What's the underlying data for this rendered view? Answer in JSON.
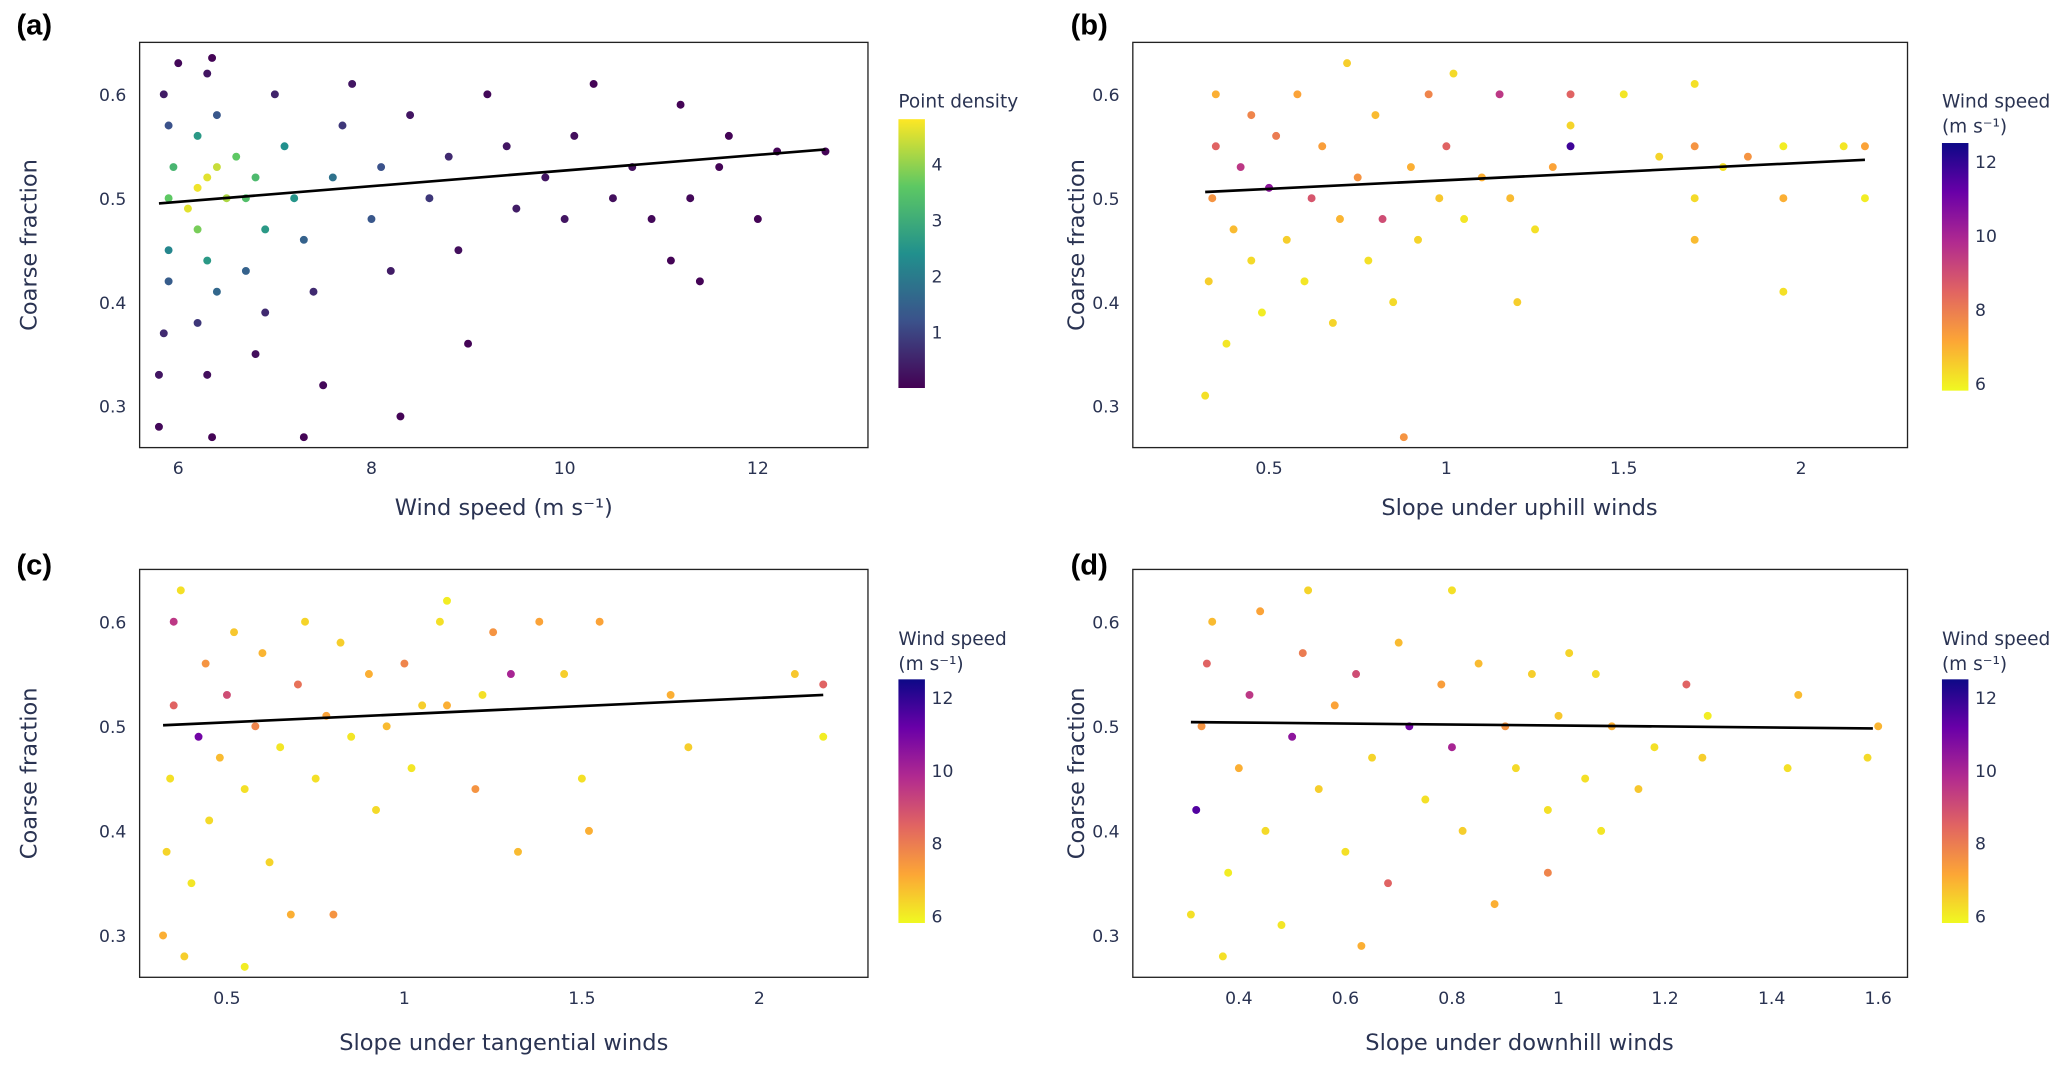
{
  "chart_data": [
    {
      "panel_label": "(a)",
      "type": "scatter",
      "xlabel": "Wind speed (m s⁻¹)",
      "ylabel": "Coarse fraction",
      "xlim": [
        5.6,
        13.14
      ],
      "ylim": [
        0.26,
        0.65
      ],
      "xticks": [
        6,
        8,
        10,
        12
      ],
      "yticks": [
        0.3,
        0.4,
        0.5,
        0.6
      ],
      "grid": false,
      "colorbar": {
        "title": "Point density",
        "title2": "",
        "range": [
          0,
          4.8
        ],
        "ticks": [
          1,
          2,
          3,
          4
        ],
        "colormap": "viridis",
        "stops": [
          "#440154",
          "#3b528b",
          "#21908d",
          "#5dc863",
          "#fde725"
        ]
      },
      "fit_line": {
        "x": [
          5.8,
          12.7
        ],
        "y": [
          0.495,
          0.547
        ],
        "color": "#000000"
      },
      "points": [
        [
          5.8,
          0.28,
          0.1
        ],
        [
          5.8,
          0.33,
          0.3
        ],
        [
          5.85,
          0.37,
          0.6
        ],
        [
          5.9,
          0.42,
          1.4
        ],
        [
          5.9,
          0.45,
          2.2
        ],
        [
          5.9,
          0.5,
          3.6
        ],
        [
          5.95,
          0.53,
          3.2
        ],
        [
          5.9,
          0.57,
          1.2
        ],
        [
          5.85,
          0.6,
          0.4
        ],
        [
          6.0,
          0.63,
          0.1
        ],
        [
          6.1,
          0.49,
          4.6
        ],
        [
          6.2,
          0.51,
          4.7
        ],
        [
          6.3,
          0.52,
          4.6
        ],
        [
          6.4,
          0.53,
          4.4
        ],
        [
          6.5,
          0.5,
          4.2
        ],
        [
          6.2,
          0.47,
          3.8
        ],
        [
          6.3,
          0.44,
          2.6
        ],
        [
          6.4,
          0.41,
          1.6
        ],
        [
          6.2,
          0.38,
          0.8
        ],
        [
          6.3,
          0.33,
          0.2
        ],
        [
          6.35,
          0.27,
          0.05
        ],
        [
          6.2,
          0.56,
          2.6
        ],
        [
          6.4,
          0.58,
          1.3
        ],
        [
          6.3,
          0.62,
          0.3
        ],
        [
          6.35,
          0.635,
          0.05
        ],
        [
          6.6,
          0.54,
          3.6
        ],
        [
          6.7,
          0.5,
          3.4
        ],
        [
          6.8,
          0.52,
          3.3
        ],
        [
          6.9,
          0.47,
          2.6
        ],
        [
          6.7,
          0.43,
          1.5
        ],
        [
          6.9,
          0.39,
          0.6
        ],
        [
          6.8,
          0.35,
          0.2
        ],
        [
          7.0,
          0.6,
          0.5
        ],
        [
          7.1,
          0.55,
          2.4
        ],
        [
          7.2,
          0.5,
          2.5
        ],
        [
          7.3,
          0.46,
          1.5
        ],
        [
          7.3,
          0.27,
          0.05
        ],
        [
          7.5,
          0.32,
          0.1
        ],
        [
          7.4,
          0.41,
          0.6
        ],
        [
          7.6,
          0.52,
          1.8
        ],
        [
          7.7,
          0.57,
          0.8
        ],
        [
          7.8,
          0.61,
          0.3
        ],
        [
          8.0,
          0.48,
          1.3
        ],
        [
          8.1,
          0.53,
          1.2
        ],
        [
          8.2,
          0.43,
          0.4
        ],
        [
          8.3,
          0.29,
          0.05
        ],
        [
          8.4,
          0.58,
          0.3
        ],
        [
          8.6,
          0.5,
          0.8
        ],
        [
          8.8,
          0.54,
          0.6
        ],
        [
          8.9,
          0.45,
          0.2
        ],
        [
          9.0,
          0.36,
          0.05
        ],
        [
          9.2,
          0.6,
          0.1
        ],
        [
          9.4,
          0.55,
          0.3
        ],
        [
          9.5,
          0.49,
          0.4
        ],
        [
          9.8,
          0.52,
          0.3
        ],
        [
          10.0,
          0.48,
          0.3
        ],
        [
          10.1,
          0.56,
          0.2
        ],
        [
          10.3,
          0.61,
          0.05
        ],
        [
          10.5,
          0.5,
          0.2
        ],
        [
          10.7,
          0.53,
          0.2
        ],
        [
          10.9,
          0.48,
          0.1
        ],
        [
          11.1,
          0.44,
          0.05
        ],
        [
          11.2,
          0.59,
          0.05
        ],
        [
          11.3,
          0.5,
          0.1
        ],
        [
          11.4,
          0.42,
          0.05
        ],
        [
          11.6,
          0.53,
          0.05
        ],
        [
          11.7,
          0.56,
          0.05
        ],
        [
          12.0,
          0.48,
          0.05
        ],
        [
          12.2,
          0.545,
          0.05
        ],
        [
          12.7,
          0.545,
          0.05
        ]
      ]
    },
    {
      "panel_label": "(b)",
      "type": "scatter",
      "xlabel": "Slope under uphill winds",
      "ylabel": "Coarse fraction",
      "xlim": [
        0.116,
        2.3
      ],
      "ylim": [
        0.26,
        0.65
      ],
      "xticks": [
        0.5,
        1,
        1.5,
        2
      ],
      "yticks": [
        0.3,
        0.4,
        0.5,
        0.6
      ],
      "grid": false,
      "colorbar": {
        "title": "Wind speed",
        "title2": "(m s⁻¹)",
        "range": [
          5.8,
          12.5
        ],
        "ticks": [
          6,
          8,
          10,
          12
        ],
        "colormap": "plasma-reversed",
        "stops": [
          "#f0f921",
          "#fca636",
          "#e16462",
          "#b12a90",
          "#6a00a8",
          "#0d0887"
        ]
      },
      "fit_line": {
        "x": [
          0.32,
          2.18
        ],
        "y": [
          0.506,
          0.537
        ],
        "color": "#000000"
      },
      "points": [
        [
          0.32,
          0.31,
          6.2
        ],
        [
          0.33,
          0.42,
          6.5
        ],
        [
          0.34,
          0.5,
          7.5
        ],
        [
          0.35,
          0.55,
          8.5
        ],
        [
          0.35,
          0.6,
          7.0
        ],
        [
          0.38,
          0.36,
          6.1
        ],
        [
          0.4,
          0.47,
          6.8
        ],
        [
          0.42,
          0.53,
          9.5
        ],
        [
          0.45,
          0.58,
          7.8
        ],
        [
          0.45,
          0.44,
          6.3
        ],
        [
          0.48,
          0.39,
          6.0
        ],
        [
          0.5,
          0.51,
          10.5
        ],
        [
          0.52,
          0.56,
          8.0
        ],
        [
          0.55,
          0.46,
          6.5
        ],
        [
          0.58,
          0.6,
          7.2
        ],
        [
          0.6,
          0.42,
          6.1
        ],
        [
          0.62,
          0.5,
          8.8
        ],
        [
          0.65,
          0.55,
          7.3
        ],
        [
          0.68,
          0.38,
          6.4
        ],
        [
          0.7,
          0.48,
          6.9
        ],
        [
          0.72,
          0.63,
          6.5
        ],
        [
          0.75,
          0.52,
          7.5
        ],
        [
          0.78,
          0.44,
          6.2
        ],
        [
          0.8,
          0.58,
          6.8
        ],
        [
          0.82,
          0.48,
          9.0
        ],
        [
          0.85,
          0.4,
          6.3
        ],
        [
          0.88,
          0.27,
          7.5
        ],
        [
          0.9,
          0.53,
          7.0
        ],
        [
          0.92,
          0.46,
          6.4
        ],
        [
          0.95,
          0.6,
          7.8
        ],
        [
          0.98,
          0.5,
          6.6
        ],
        [
          1.0,
          0.55,
          8.5
        ],
        [
          1.02,
          0.62,
          6.3
        ],
        [
          1.05,
          0.48,
          6.1
        ],
        [
          1.1,
          0.52,
          7.0
        ],
        [
          1.15,
          0.6,
          9.5
        ],
        [
          1.18,
          0.5,
          6.8
        ],
        [
          1.2,
          0.4,
          6.5
        ],
        [
          1.25,
          0.47,
          6.2
        ],
        [
          1.3,
          0.53,
          7.2
        ],
        [
          1.35,
          0.55,
          11.8
        ],
        [
          1.35,
          0.6,
          8.5
        ],
        [
          1.35,
          0.57,
          6.4
        ],
        [
          1.5,
          0.6,
          6.1
        ],
        [
          1.6,
          0.54,
          6.4
        ],
        [
          1.7,
          0.61,
          6.2
        ],
        [
          1.7,
          0.55,
          7.5
        ],
        [
          1.7,
          0.5,
          6.3
        ],
        [
          1.7,
          0.46,
          6.8
        ],
        [
          1.78,
          0.53,
          6.2
        ],
        [
          1.85,
          0.54,
          7.5
        ],
        [
          1.95,
          0.5,
          7.0
        ],
        [
          1.95,
          0.41,
          6.2
        ],
        [
          1.95,
          0.55,
          6.0
        ],
        [
          2.12,
          0.55,
          6.1
        ],
        [
          2.18,
          0.55,
          7.2
        ],
        [
          2.18,
          0.5,
          6.0
        ]
      ]
    },
    {
      "panel_label": "(c)",
      "type": "scatter",
      "xlabel": "Slope under tangential winds",
      "ylabel": "Coarse fraction",
      "xlim": [
        0.254,
        2.306
      ],
      "ylim": [
        0.26,
        0.65
      ],
      "xticks": [
        0.5,
        1,
        1.5,
        2
      ],
      "yticks": [
        0.3,
        0.4,
        0.5,
        0.6
      ],
      "grid": false,
      "colorbar": {
        "title": "Wind speed",
        "title2": "(m s⁻¹)",
        "range": [
          5.8,
          12.5
        ],
        "ticks": [
          6,
          8,
          10,
          12
        ],
        "colormap": "plasma-reversed",
        "stops": [
          "#f0f921",
          "#fca636",
          "#e16462",
          "#b12a90",
          "#6a00a8",
          "#0d0887"
        ]
      },
      "fit_line": {
        "x": [
          0.32,
          2.18
        ],
        "y": [
          0.501,
          0.53
        ],
        "color": "#000000"
      },
      "points": [
        [
          0.32,
          0.3,
          7.0
        ],
        [
          0.33,
          0.38,
          6.4
        ],
        [
          0.34,
          0.45,
          6.2
        ],
        [
          0.35,
          0.52,
          8.5
        ],
        [
          0.35,
          0.6,
          9.5
        ],
        [
          0.37,
          0.63,
          6.2
        ],
        [
          0.38,
          0.28,
          6.5
        ],
        [
          0.4,
          0.35,
          6.1
        ],
        [
          0.42,
          0.49,
          11.0
        ],
        [
          0.44,
          0.56,
          7.5
        ],
        [
          0.45,
          0.41,
          6.3
        ],
        [
          0.48,
          0.47,
          6.8
        ],
        [
          0.5,
          0.53,
          9.0
        ],
        [
          0.52,
          0.59,
          6.6
        ],
        [
          0.55,
          0.27,
          6.0
        ],
        [
          0.55,
          0.44,
          6.2
        ],
        [
          0.58,
          0.5,
          7.8
        ],
        [
          0.6,
          0.57,
          6.9
        ],
        [
          0.62,
          0.37,
          6.4
        ],
        [
          0.65,
          0.48,
          6.1
        ],
        [
          0.68,
          0.32,
          7.0
        ],
        [
          0.7,
          0.54,
          8.2
        ],
        [
          0.72,
          0.6,
          6.4
        ],
        [
          0.75,
          0.45,
          6.2
        ],
        [
          0.78,
          0.51,
          7.2
        ],
        [
          0.8,
          0.32,
          7.5
        ],
        [
          0.82,
          0.58,
          6.5
        ],
        [
          0.85,
          0.49,
          6.1
        ],
        [
          0.9,
          0.55,
          7.0
        ],
        [
          0.92,
          0.42,
          6.3
        ],
        [
          0.95,
          0.5,
          6.8
        ],
        [
          1.0,
          0.56,
          7.8
        ],
        [
          1.02,
          0.46,
          6.1
        ],
        [
          1.05,
          0.52,
          6.5
        ],
        [
          1.1,
          0.6,
          6.2
        ],
        [
          1.12,
          0.62,
          6.0
        ],
        [
          1.12,
          0.52,
          7.0
        ],
        [
          1.2,
          0.44,
          7.5
        ],
        [
          1.22,
          0.53,
          6.2
        ],
        [
          1.25,
          0.59,
          7.5
        ],
        [
          1.3,
          0.55,
          10.0
        ],
        [
          1.32,
          0.38,
          6.8
        ],
        [
          1.38,
          0.6,
          7.2
        ],
        [
          1.45,
          0.55,
          6.5
        ],
        [
          1.5,
          0.45,
          6.2
        ],
        [
          1.52,
          0.4,
          7.0
        ],
        [
          1.55,
          0.6,
          7.2
        ],
        [
          1.75,
          0.53,
          7.0
        ],
        [
          1.8,
          0.48,
          6.5
        ],
        [
          2.1,
          0.55,
          6.6
        ],
        [
          2.18,
          0.54,
          8.5
        ],
        [
          2.18,
          0.49,
          6.0
        ]
      ]
    },
    {
      "panel_label": "(d)",
      "type": "scatter",
      "xlabel": "Slope under downhill winds",
      "ylabel": "Coarse fraction",
      "xlim": [
        0.201,
        1.655
      ],
      "ylim": [
        0.26,
        0.65
      ],
      "xticks": [
        0.4,
        0.6,
        0.8,
        1,
        1.2,
        1.4,
        1.6
      ],
      "yticks": [
        0.3,
        0.4,
        0.5,
        0.6
      ],
      "grid": false,
      "colorbar": {
        "title": "Wind speed",
        "title2": "(m s⁻¹)",
        "range": [
          5.8,
          12.5
        ],
        "ticks": [
          6,
          8,
          10,
          12
        ],
        "colormap": "plasma-reversed",
        "stops": [
          "#f0f921",
          "#fca636",
          "#e16462",
          "#b12a90",
          "#6a00a8",
          "#0d0887"
        ]
      },
      "fit_line": {
        "x": [
          0.31,
          1.59
        ],
        "y": [
          0.504,
          0.498
        ],
        "color": "#000000"
      },
      "points": [
        [
          0.31,
          0.32,
          6.2
        ],
        [
          0.32,
          0.42,
          11.5
        ],
        [
          0.33,
          0.5,
          7.5
        ],
        [
          0.34,
          0.56,
          8.5
        ],
        [
          0.35,
          0.6,
          6.8
        ],
        [
          0.37,
          0.28,
          6.2
        ],
        [
          0.38,
          0.36,
          6.0
        ],
        [
          0.4,
          0.46,
          7.0
        ],
        [
          0.42,
          0.53,
          9.5
        ],
        [
          0.44,
          0.61,
          7.2
        ],
        [
          0.45,
          0.4,
          6.3
        ],
        [
          0.48,
          0.31,
          6.1
        ],
        [
          0.5,
          0.49,
          10.5
        ],
        [
          0.52,
          0.57,
          8.0
        ],
        [
          0.53,
          0.63,
          6.4
        ],
        [
          0.55,
          0.44,
          6.5
        ],
        [
          0.58,
          0.52,
          7.2
        ],
        [
          0.6,
          0.38,
          6.2
        ],
        [
          0.62,
          0.55,
          9.0
        ],
        [
          0.63,
          0.29,
          7.0
        ],
        [
          0.65,
          0.47,
          6.4
        ],
        [
          0.68,
          0.35,
          8.5
        ],
        [
          0.7,
          0.58,
          6.8
        ],
        [
          0.72,
          0.5,
          11.0
        ],
        [
          0.75,
          0.43,
          6.2
        ],
        [
          0.78,
          0.54,
          7.3
        ],
        [
          0.8,
          0.63,
          6.2
        ],
        [
          0.8,
          0.48,
          10.0
        ],
        [
          0.82,
          0.4,
          6.5
        ],
        [
          0.85,
          0.56,
          6.8
        ],
        [
          0.88,
          0.33,
          7.0
        ],
        [
          0.9,
          0.5,
          7.5
        ],
        [
          0.92,
          0.46,
          6.3
        ],
        [
          0.95,
          0.55,
          6.5
        ],
        [
          0.98,
          0.36,
          7.8
        ],
        [
          0.98,
          0.42,
          6.2
        ],
        [
          1.0,
          0.51,
          6.6
        ],
        [
          1.02,
          0.57,
          6.4
        ],
        [
          1.05,
          0.45,
          6.2
        ],
        [
          1.07,
          0.55,
          6.3
        ],
        [
          1.08,
          0.4,
          6.1
        ],
        [
          1.1,
          0.5,
          7.0
        ],
        [
          1.15,
          0.44,
          6.6
        ],
        [
          1.18,
          0.48,
          6.2
        ],
        [
          1.24,
          0.54,
          8.5
        ],
        [
          1.27,
          0.47,
          6.5
        ],
        [
          1.28,
          0.51,
          6.0
        ],
        [
          1.43,
          0.46,
          6.2
        ],
        [
          1.45,
          0.53,
          6.8
        ],
        [
          1.58,
          0.47,
          6.3
        ],
        [
          1.6,
          0.5,
          6.9
        ]
      ]
    }
  ]
}
